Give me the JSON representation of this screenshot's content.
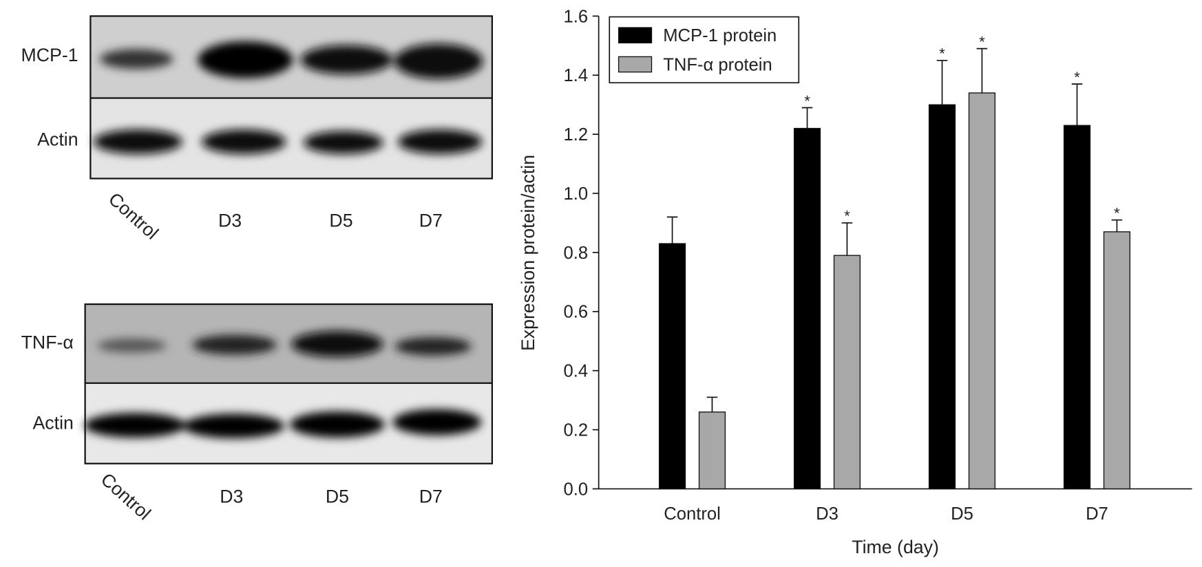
{
  "blots": [
    {
      "rows": [
        "MCP-1",
        "Actin"
      ],
      "lanes": [
        "Control",
        "D3",
        "D5",
        "D7"
      ]
    },
    {
      "rows": [
        "TNF-α",
        "Actin"
      ],
      "lanes": [
        "Control",
        "D3",
        "D5",
        "D7"
      ]
    }
  ],
  "chart_data": {
    "type": "bar",
    "xlabel": "Time (day)",
    "ylabel": "Expression protein/actin",
    "categories": [
      "Control",
      "D3",
      "D5",
      "D7"
    ],
    "series": [
      {
        "name": "MCP-1 protein",
        "color": "#000000",
        "values": [
          0.83,
          1.22,
          1.3,
          1.23
        ],
        "errors": [
          0.09,
          0.07,
          0.15,
          0.14
        ],
        "annotations": [
          null,
          "*",
          "*",
          "*"
        ]
      },
      {
        "name": "TNF-α protein",
        "color": "#a8a8a8",
        "values": [
          0.26,
          0.79,
          1.34,
          0.87
        ],
        "errors": [
          0.05,
          0.11,
          0.15,
          0.04
        ],
        "annotations": [
          null,
          "*",
          "*",
          "*"
        ]
      }
    ],
    "ylim": [
      0,
      1.6
    ],
    "yticks": [
      {
        "value": 0,
        "label": "0.0"
      },
      {
        "value": 0.2,
        "label": "0.2"
      },
      {
        "value": 0.4,
        "label": "0.4"
      },
      {
        "value": 0.6,
        "label": "0.6"
      },
      {
        "value": 0.8,
        "label": "0.8"
      },
      {
        "value": 1,
        "label": "1.0"
      },
      {
        "value": 1.2,
        "label": "1.2"
      },
      {
        "value": 1.4,
        "label": "1.4"
      },
      {
        "value": 1.6,
        "label": "1.6"
      }
    ],
    "legend": "upper left"
  }
}
